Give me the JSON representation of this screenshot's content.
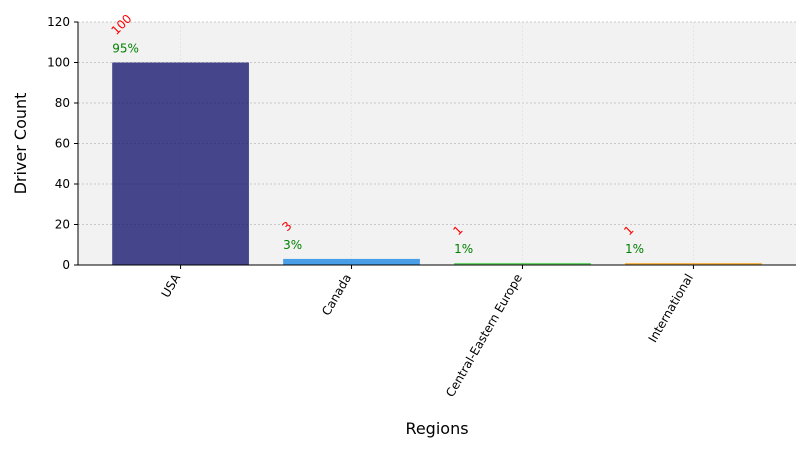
{
  "chart_data": {
    "type": "bar",
    "title": "",
    "xlabel": "Regions",
    "ylabel": "Driver Count",
    "categories": [
      "USA",
      "Canada",
      "Central-Eastern Europe",
      "International"
    ],
    "values": [
      100,
      3,
      1,
      1
    ],
    "value_labels": [
      "100",
      "3",
      "1",
      "1"
    ],
    "percent_labels": [
      "95%",
      "3%",
      "1%",
      "1%"
    ],
    "bar_colors": [
      "#191970",
      "#1e88e5",
      "#43c943",
      "#f5a623"
    ],
    "value_label_color": "#ff0000",
    "percent_label_color": "#008000",
    "ylim": [
      0,
      120
    ],
    "yticks": [
      0,
      20,
      40,
      60,
      80,
      100,
      120
    ],
    "grid": true,
    "plot_background": "#f2f2f2"
  }
}
